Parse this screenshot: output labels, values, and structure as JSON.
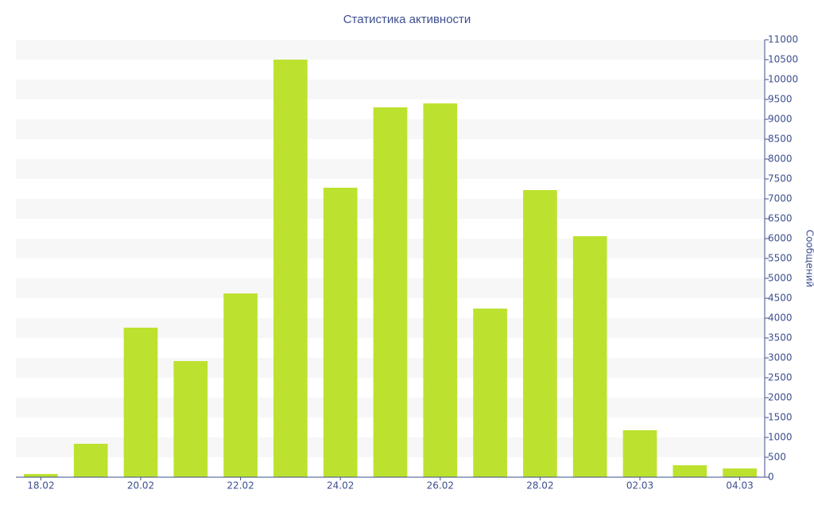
{
  "chart_data": {
    "type": "bar",
    "title": "Статистика активности",
    "y_label": "Сообщений",
    "categories": [
      "18.02",
      null,
      "20.02",
      null,
      "22.02",
      null,
      "24.02",
      null,
      "26.02",
      null,
      "28.02",
      null,
      "02.03",
      null,
      "04.03"
    ],
    "values": [
      80,
      840,
      3760,
      2920,
      4620,
      10500,
      7280,
      9300,
      9400,
      4240,
      7220,
      6060,
      1180,
      300,
      220
    ],
    "color": "#bce22f",
    "ylim": [
      0,
      11000
    ],
    "yticks": [
      0,
      500,
      1000,
      1500,
      2000,
      2500,
      3000,
      3500,
      4000,
      4500,
      5000,
      5500,
      6000,
      6500,
      7000,
      7500,
      8000,
      8500,
      9000,
      9500,
      10000,
      10500,
      11000
    ],
    "y_axis_side": "right",
    "grid": "bands"
  }
}
